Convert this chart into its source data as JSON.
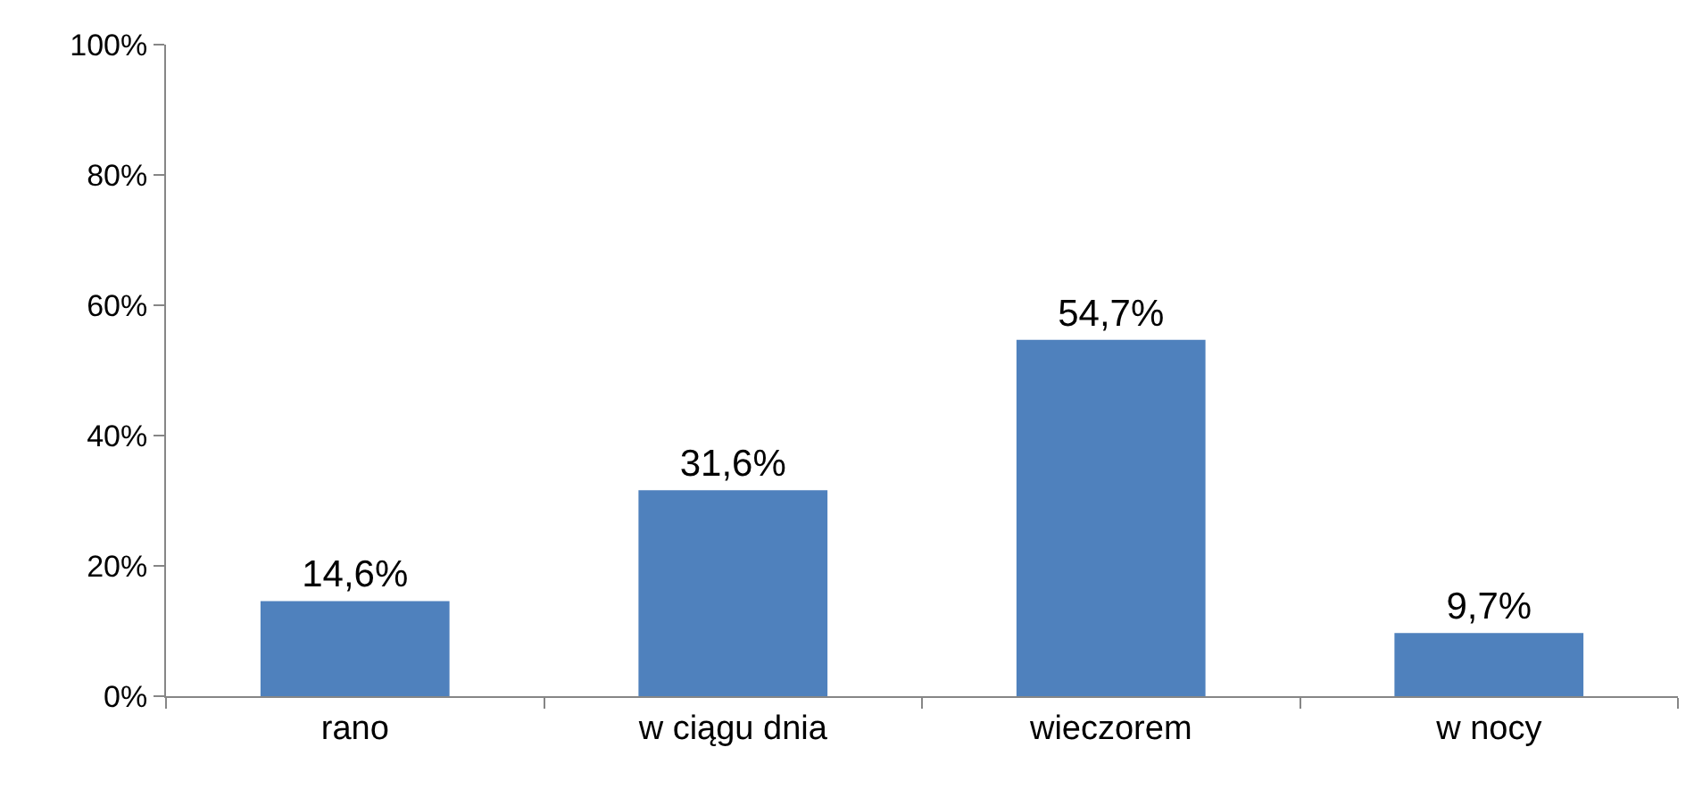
{
  "chart_data": {
    "type": "bar",
    "categories": [
      "rano",
      "w ciągu dnia",
      "wieczorem",
      "w nocy"
    ],
    "values": [
      14.6,
      31.6,
      54.7,
      9.7
    ],
    "value_labels": [
      "14,6%",
      "31,6%",
      "54,7%",
      "9,7%"
    ],
    "color": "#4f81bd",
    "ylim": [
      0,
      100
    ],
    "yticks": [
      {
        "value": 0,
        "label": "0%"
      },
      {
        "value": 20,
        "label": "20%"
      },
      {
        "value": 40,
        "label": "40%"
      },
      {
        "value": 60,
        "label": "60%"
      },
      {
        "value": 80,
        "label": "80%"
      },
      {
        "value": 100,
        "label": "100%"
      }
    ],
    "grid": false
  }
}
